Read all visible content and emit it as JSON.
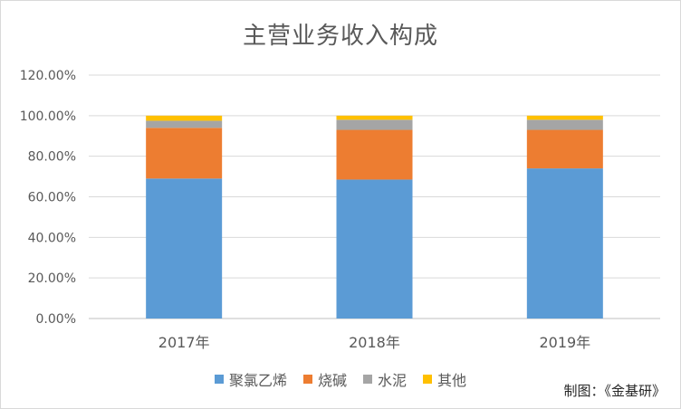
{
  "chart_data": {
    "type": "bar",
    "stacked": true,
    "title": "主营业务收入构成",
    "categories": [
      "2017年",
      "2018年",
      "2019年"
    ],
    "series": [
      {
        "name": "聚氯乙烯",
        "color": "#5B9BD5",
        "values": [
          69.0,
          68.5,
          74.0
        ]
      },
      {
        "name": "烧碱",
        "color": "#ED7D31",
        "values": [
          25.0,
          24.5,
          19.0
        ]
      },
      {
        "name": "水泥",
        "color": "#A5A5A5",
        "values": [
          3.5,
          5.0,
          5.0
        ]
      },
      {
        "name": "其他",
        "color": "#FFC000",
        "values": [
          2.5,
          2.0,
          2.0
        ]
      }
    ],
    "yticks": [
      "0.00%",
      "20.00%",
      "40.00%",
      "60.00%",
      "80.00%",
      "100.00%",
      "120.00%"
    ],
    "ylim": [
      0,
      120
    ],
    "grid": true,
    "legend_position": "bottom"
  },
  "source_note": "制图：《金基研》"
}
